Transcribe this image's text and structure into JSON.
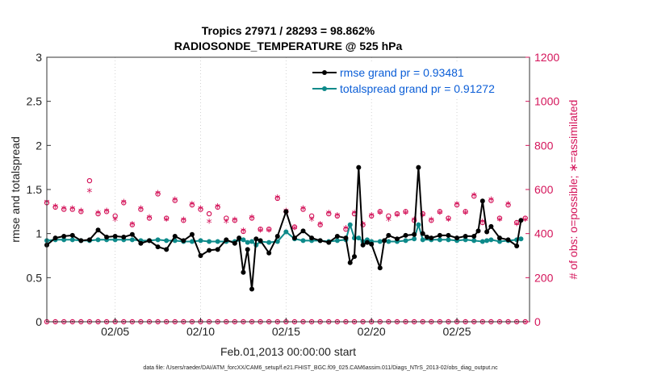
{
  "chart_data": {
    "type": "scatter",
    "title": "Tropics 27971 / 28293 = 98.862%",
    "subtitle": "RADIOSONDE_TEMPERATURE @ 525 hPa",
    "xlabel": "Feb.01,2013 00:00:00 start",
    "ylabel_left": "rmse and totalspread",
    "ylabel_right": "# of obs: o=possible; ∗=assimilated",
    "footer": "data file: /Users/raeder/DAI/ATM_forcXX/CAM6_setup/f.e21.FHIST_BGC.f09_025.CAM6assim.011/Diags_NTrS_2013-02/obs_diag_output.nc",
    "xlim": [
      1,
      29.25
    ],
    "ylim_left": [
      0,
      3
    ],
    "ylim_right": [
      0,
      1200
    ],
    "x_ticks": [
      5,
      10,
      15,
      20,
      25
    ],
    "x_tick_labels": [
      "02/05",
      "02/10",
      "02/15",
      "02/20",
      "02/25"
    ],
    "y_ticks_left": [
      "0",
      "0.5",
      "1",
      "1.5",
      "2",
      "2.5",
      "3"
    ],
    "y_ticks_right": [
      "0",
      "200",
      "400",
      "600",
      "800",
      "1000",
      "1200"
    ],
    "grid": "vertical-dotted",
    "legend_position": "top-right",
    "colors": {
      "rmse": "#000000",
      "totalspread": "#0d8a8a",
      "obs": "#d4145a"
    },
    "series": [
      {
        "name": "rmse grand pr = 0.93481",
        "marker": "dot",
        "x": [
          1.0,
          1.5,
          2.0,
          2.5,
          3.0,
          3.5,
          4.0,
          4.5,
          5.0,
          5.5,
          6.0,
          6.5,
          7.0,
          7.5,
          8.0,
          8.5,
          9.0,
          9.5,
          10.0,
          10.5,
          11.0,
          11.5,
          12.0,
          12.25,
          12.5,
          12.75,
          13.0,
          13.25,
          13.5,
          14.0,
          14.5,
          15.0,
          15.5,
          16.0,
          16.5,
          17.0,
          17.5,
          18.0,
          18.5,
          18.75,
          19.0,
          19.25,
          19.5,
          19.75,
          20.0,
          20.5,
          20.75,
          21.0,
          21.5,
          22.0,
          22.5,
          22.75,
          23.0,
          23.25,
          23.5,
          24.0,
          24.5,
          25.0,
          25.5,
          26.0,
          26.25,
          26.5,
          26.75,
          27.0,
          27.5,
          28.0,
          28.5,
          28.75
        ],
        "y": [
          0.87,
          0.95,
          0.97,
          0.98,
          0.92,
          0.93,
          1.04,
          0.96,
          0.97,
          0.96,
          0.99,
          0.89,
          0.92,
          0.85,
          0.82,
          0.97,
          0.92,
          0.99,
          0.75,
          0.81,
          0.82,
          0.93,
          0.89,
          0.95,
          0.56,
          0.82,
          0.37,
          0.94,
          0.92,
          0.78,
          0.97,
          1.25,
          0.95,
          1.03,
          0.95,
          0.92,
          0.9,
          0.97,
          0.95,
          0.67,
          0.74,
          1.75,
          0.87,
          0.9,
          0.88,
          0.61,
          0.92,
          0.98,
          0.94,
          0.98,
          0.99,
          1.75,
          1.0,
          0.96,
          0.95,
          0.98,
          0.98,
          0.95,
          0.97,
          0.97,
          1.03,
          1.37,
          1.02,
          1.08,
          0.95,
          0.93,
          0.86,
          1.15
        ]
      },
      {
        "name": "totalspread grand pr = 0.91272",
        "marker": "dot",
        "x": [
          1.0,
          1.5,
          2.0,
          2.5,
          3.0,
          3.5,
          4.0,
          4.5,
          5.0,
          5.5,
          6.0,
          6.5,
          7.0,
          7.5,
          8.0,
          8.5,
          9.0,
          9.5,
          10.0,
          10.5,
          11.0,
          11.5,
          12.0,
          12.5,
          12.75,
          13.0,
          13.25,
          13.5,
          14.0,
          14.5,
          15.0,
          15.5,
          16.0,
          16.5,
          17.0,
          17.5,
          18.0,
          18.5,
          18.75,
          19.0,
          19.25,
          19.5,
          19.75,
          20.0,
          20.5,
          21.0,
          21.5,
          22.0,
          22.5,
          22.75,
          23.0,
          23.5,
          24.0,
          24.5,
          25.0,
          25.5,
          26.0,
          26.5,
          26.75,
          27.0,
          27.5,
          28.0,
          28.5,
          28.75
        ],
        "y": [
          0.92,
          0.93,
          0.93,
          0.93,
          0.92,
          0.92,
          0.93,
          0.93,
          0.93,
          0.93,
          0.93,
          0.92,
          0.92,
          0.93,
          0.92,
          0.92,
          0.91,
          0.91,
          0.92,
          0.91,
          0.91,
          0.91,
          0.91,
          0.93,
          0.9,
          0.91,
          0.87,
          0.91,
          0.9,
          0.91,
          1.02,
          0.94,
          0.92,
          0.92,
          0.92,
          0.91,
          0.92,
          0.93,
          1.1,
          0.95,
          0.95,
          0.91,
          0.93,
          0.91,
          0.91,
          0.91,
          0.91,
          0.92,
          0.94,
          1.1,
          0.93,
          0.93,
          0.93,
          0.93,
          0.92,
          0.93,
          0.92,
          0.91,
          0.92,
          0.93,
          0.91,
          0.92,
          0.93,
          0.94
        ]
      }
    ],
    "obs_possible": {
      "x": [
        1.0,
        1.5,
        2.0,
        2.5,
        3.0,
        3.5,
        4.0,
        4.5,
        5.0,
        5.5,
        6.0,
        6.5,
        7.0,
        7.5,
        8.0,
        8.5,
        9.0,
        9.5,
        10.0,
        10.5,
        11.0,
        11.5,
        12.0,
        12.5,
        13.0,
        13.5,
        14.0,
        14.5,
        15.0,
        15.5,
        16.0,
        16.5,
        17.0,
        17.5,
        18.0,
        18.5,
        19.0,
        19.5,
        20.0,
        20.5,
        21.0,
        21.5,
        22.0,
        22.5,
        23.0,
        23.5,
        24.0,
        24.5,
        25.0,
        25.5,
        26.0,
        26.5,
        27.0,
        27.5,
        28.0,
        28.5,
        29.0
      ],
      "y": [
        540,
        520,
        510,
        510,
        500,
        640,
        490,
        500,
        480,
        540,
        440,
        510,
        470,
        580,
        470,
        550,
        460,
        530,
        510,
        490,
        520,
        470,
        460,
        410,
        470,
        420,
        420,
        560,
        500,
        430,
        510,
        480,
        440,
        490,
        480,
        420,
        490,
        440,
        480,
        500,
        480,
        490,
        500,
        460,
        490,
        460,
        500,
        470,
        530,
        500,
        570,
        450,
        550,
        470,
        530,
        450,
        470
      ]
    },
    "obs_assimilated": {
      "x": [
        1.0,
        1.5,
        2.0,
        2.5,
        3.0,
        3.5,
        4.0,
        4.5,
        5.0,
        5.5,
        6.0,
        6.5,
        7.0,
        7.5,
        8.0,
        8.5,
        9.0,
        9.5,
        10.0,
        10.5,
        11.0,
        11.5,
        12.0,
        12.5,
        13.0,
        13.5,
        14.0,
        14.5,
        15.0,
        15.5,
        16.0,
        16.5,
        17.0,
        17.5,
        18.0,
        18.5,
        19.0,
        19.5,
        20.0,
        20.5,
        21.0,
        21.5,
        22.0,
        22.5,
        23.0,
        23.5,
        24.0,
        24.5,
        25.0,
        25.5,
        26.0,
        26.5,
        27.0,
        27.5,
        28.0,
        28.5,
        29.0
      ],
      "y": [
        538,
        518,
        508,
        508,
        498,
        588,
        488,
        498,
        458,
        538,
        438,
        508,
        468,
        578,
        458,
        548,
        458,
        528,
        508,
        448,
        518,
        448,
        458,
        408,
        468,
        408,
        408,
        558,
        498,
        418,
        508,
        458,
        438,
        488,
        478,
        418,
        488,
        438,
        478,
        488,
        458,
        478,
        488,
        458,
        478,
        458,
        488,
        458,
        528,
        488,
        568,
        448,
        548,
        458,
        528,
        438,
        458
      ]
    },
    "obs_zero_x": [
      1.0,
      1.5,
      2.0,
      2.5,
      3.0,
      3.5,
      4.0,
      4.5,
      5.0,
      5.5,
      6.0,
      6.5,
      7.0,
      7.5,
      8.0,
      8.5,
      9.0,
      9.5,
      10.0,
      10.5,
      11.0,
      11.5,
      12.0,
      12.5,
      13.0,
      13.5,
      14.0,
      14.5,
      15.0,
      15.5,
      16.0,
      16.5,
      17.0,
      17.5,
      18.0,
      18.5,
      19.0,
      19.5,
      20.0,
      20.5,
      21.0,
      21.5,
      22.0,
      22.5,
      23.0,
      23.5,
      24.0,
      24.5,
      25.0,
      25.5,
      26.0,
      26.5,
      27.0,
      27.5,
      28.0,
      28.5,
      29.0
    ]
  }
}
